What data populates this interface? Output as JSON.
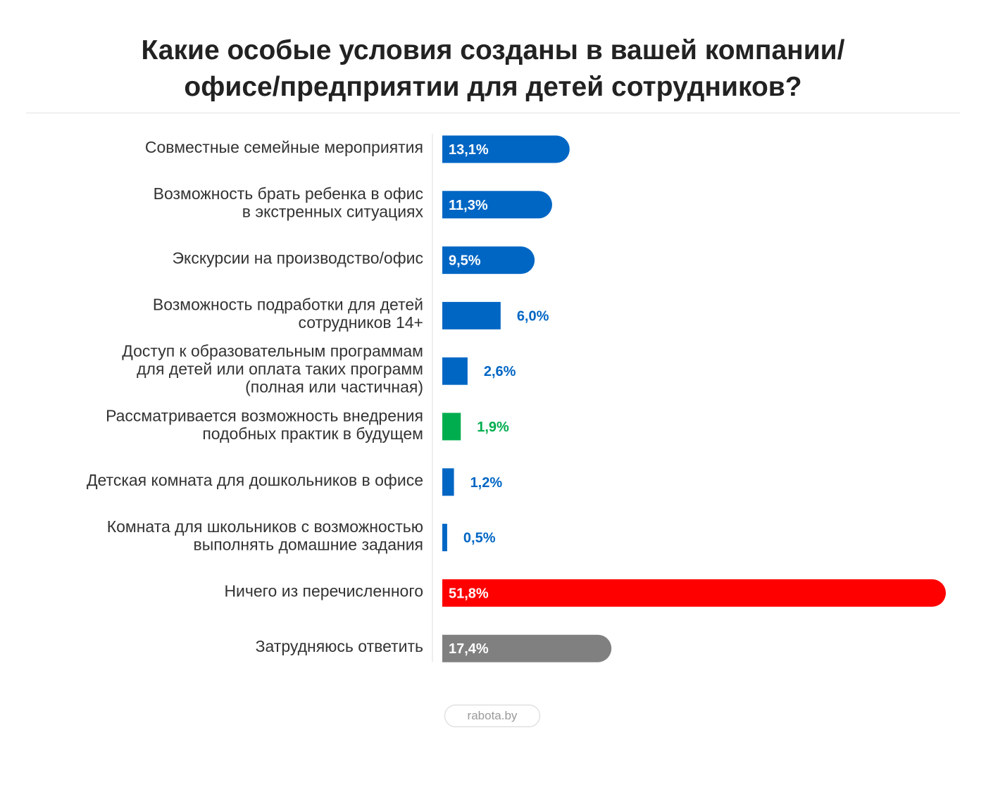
{
  "title": {
    "line1": "Какие особые условия созданы в вашей компании/",
    "line2": "офисе/предприятии для детей сотрудников?"
  },
  "source": "rabota.by",
  "colors": {
    "blue": "#0066c4",
    "green": "#00ad4e",
    "red": "#ff0000",
    "gray": "#808080",
    "label_inside": "#ffffff",
    "axis": "#dcdcdc"
  },
  "chart_data": {
    "type": "bar",
    "orientation": "horizontal",
    "title": "Какие особые условия созданы в вашей компании/офисе/предприятии для детей сотрудников?",
    "unit": "%",
    "xlim": [
      0,
      51.8
    ],
    "grid": false,
    "legend": "none",
    "categories": [
      [
        "Совместные семейные мероприятия"
      ],
      [
        "Возможность брать ребенка в офис",
        "в экстренных ситуациях"
      ],
      [
        "Экскурсии на производство/офис"
      ],
      [
        "Возможность подработки для детей",
        "сотрудников 14+"
      ],
      [
        "Доступ к образовательным программам",
        "для детей или оплата таких программ",
        "(полная или частичная)"
      ],
      [
        "Рассматривается возможность внедрения",
        "подобных практик в будущем"
      ],
      [
        "Детская комната для дошкольников в офисе"
      ],
      [
        "Комната для школьников с возможностью",
        "выполнять домашние задания"
      ],
      [
        "Ничего из перечисленного"
      ],
      [
        "Затрудняюсь ответить"
      ]
    ],
    "values": [
      13.1,
      11.3,
      9.5,
      6.0,
      2.6,
      1.9,
      1.2,
      0.5,
      51.8,
      17.4
    ],
    "value_labels": [
      "13,1%",
      "11,3%",
      "9,5%",
      "6,0%",
      "2,6%",
      "1,9%",
      "1,2%",
      "0,5%",
      "51,8%",
      "17,4%"
    ],
    "bar_colors": [
      "blue",
      "blue",
      "blue",
      "blue",
      "blue",
      "green",
      "blue",
      "blue",
      "red",
      "gray"
    ]
  }
}
